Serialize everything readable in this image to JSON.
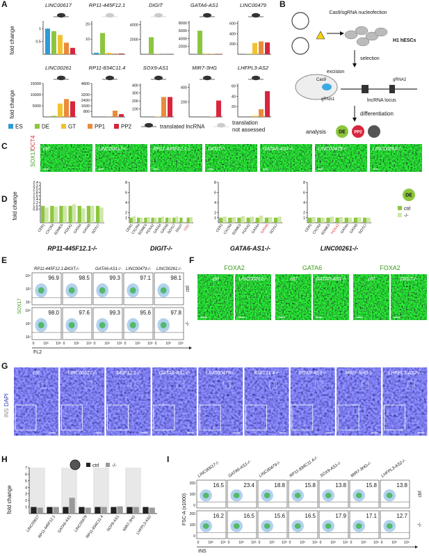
{
  "panel_letters": [
    "A",
    "B",
    "C",
    "D",
    "E",
    "F",
    "G",
    "H",
    "I"
  ],
  "a": {
    "y_label": "fold change",
    "stage_names": [
      "ES",
      "DE",
      "GT",
      "PP1",
      "PP2"
    ],
    "stage_colors": [
      "#2f9bd6",
      "#8cc63f",
      "#f2c12e",
      "#e98b3a",
      "#d7263d"
    ],
    "translated": "translated lncRNA",
    "not_assessed_1": "translation",
    "not_assessed_2": "not assessed",
    "charts": [
      {
        "title": "LINC00617",
        "translated": true,
        "ylim": [
          0,
          1.3
        ],
        "yticks": [
          0.5,
          1
        ],
        "values": [
          1.0,
          0.9,
          0.75,
          0.45,
          0.25
        ]
      },
      {
        "title": "RP11-445F12.1",
        "translated": false,
        "ylim": [
          0,
          22
        ],
        "yticks": [
          10,
          20
        ],
        "values": [
          1,
          14,
          1,
          0.5,
          0.5
        ]
      },
      {
        "title": "DIGIT",
        "translated": false,
        "ylim": [
          0,
          4500
        ],
        "yticks": [
          2000,
          4000
        ],
        "values": [
          0,
          2300,
          30,
          10,
          10
        ]
      },
      {
        "title": "GATA6-AS1",
        "translated": true,
        "ylim": [
          0,
          8500
        ],
        "yticks": [
          2000,
          4000,
          6000,
          8000
        ],
        "values": [
          0,
          6000,
          150,
          100,
          100
        ]
      },
      {
        "title": "LINC00479",
        "translated": true,
        "ylim": [
          0,
          650
        ],
        "yticks": [
          200,
          400,
          600
        ],
        "values": [
          0,
          10,
          220,
          250,
          230
        ]
      },
      {
        "title": "LINC00261",
        "translated": true,
        "ylim": [
          0,
          15000
        ],
        "yticks": [
          5000,
          10000,
          15000
        ],
        "values": [
          0,
          500,
          6000,
          8000,
          7000
        ]
      },
      {
        "title": "RP11-834C11.4",
        "translated": true,
        "ylim": [
          0,
          4800
        ],
        "yticks": [
          800,
          1600,
          2400,
          3200,
          4800
        ],
        "values": [
          0,
          0,
          20,
          900,
          400
        ]
      },
      {
        "title": "SOX9-AS1",
        "translated": true,
        "ylim": [
          0,
          420
        ],
        "yticks": [
          100,
          200,
          300,
          400
        ],
        "values": [
          0,
          0,
          5,
          250,
          250
        ]
      },
      {
        "title": "MIR7-3HG",
        "translated": true,
        "ylim": [
          0,
          450
        ],
        "yticks": [
          200,
          400
        ],
        "values": [
          0,
          0,
          0,
          5,
          220
        ]
      },
      {
        "title": "LHFPL3-AS2",
        "translated": true,
        "ylim": [
          0,
          65
        ],
        "yticks": [
          20,
          40,
          60
        ],
        "values": [
          0,
          0,
          2,
          15,
          50
        ]
      }
    ]
  },
  "b": {
    "nucleofection": "Cas9/sgRNA nucleofection",
    "cells": "H1 hESCs",
    "selection": "selection",
    "excision": "excision",
    "cas9": "Cas9",
    "grna2": "gRNA2",
    "grna1": "gRNA1",
    "locus": "lncRNA locus",
    "differentiation": "differentiation",
    "analysis": "analysis",
    "de": "DE",
    "pp2": "PP2"
  },
  "c": {
    "stain_1": "SOX17",
    "stain_2": "OCT4",
    "labels": [
      "ctrl",
      "LINC00617-/-",
      "RP11-445F12.1-/-",
      "DIGIT-/-",
      "GATA6-AS1-/-",
      "LINC00479-/-",
      "LINC00261-/-"
    ]
  },
  "d": {
    "y_label": "fold change",
    "series_names": [
      "ctrl",
      "-/-"
    ],
    "series_colors": [
      "#8cc63f",
      "#cfe6a8"
    ],
    "legend_badge": "DE",
    "charts": [
      {
        "title": "RP11-445F12.1-/-",
        "ylim": [
          0,
          2.4
        ],
        "yticks": [
          0.8,
          {
            "value": 1,
            "label": "1.0"
          },
          1.2,
          1.4,
          1.6,
          1.8,
          {
            "value": 2,
            "label": "2.0"
          },
          2.2,
          2.4
        ],
        "categories": [
          "CER1",
          "CXCR4",
          "EOMES",
          "FOXA2",
          "GATA4",
          "GATA6",
          "SOX17"
        ],
        "category_colors": [
          "#111",
          "#111",
          "#111",
          "#111",
          "#111",
          "#111",
          "#111"
        ],
        "series": [
          [
            1,
            1,
            1,
            1,
            1,
            1,
            1
          ],
          [
            0.9,
            0.95,
            1.0,
            1.1,
            0.85,
            1.0,
            0.9
          ]
        ]
      },
      {
        "title": "DIGIT-/-",
        "ylim": [
          0,
          8
        ],
        "yticks": [
          1,
          2,
          4,
          6,
          8
        ],
        "categories": [
          "CER1",
          "CXCR4",
          "EOMES",
          "FOXA2",
          "GATA4",
          "GATA6",
          "SOX17",
          "DIGIT",
          "GSC"
        ],
        "category_colors": [
          "#111",
          "#111",
          "#111",
          "#111",
          "#111",
          "#111",
          "#111",
          "#111",
          "#e0262b"
        ],
        "series": [
          [
            1,
            1,
            1,
            1,
            1,
            1,
            1,
            1,
            1
          ],
          [
            1.3,
            1.0,
            1.1,
            1.0,
            1.2,
            1.0,
            1.2,
            0.2,
            1.1
          ]
        ]
      },
      {
        "title": "GATA6-AS1-/-",
        "ylim": [
          0,
          8
        ],
        "yticks": [
          1,
          2,
          4,
          6,
          8
        ],
        "categories": [
          "CER1",
          "CXCR4",
          "EOMES",
          "FOXA2",
          "GATA4",
          "GATA6",
          "SOX17"
        ],
        "category_colors": [
          "#111",
          "#111",
          "#111",
          "#111",
          "#111",
          "#e0262b",
          "#111"
        ],
        "series": [
          [
            1,
            1,
            1,
            1,
            1,
            1,
            1
          ],
          [
            1.2,
            1.1,
            1.3,
            1.2,
            1.4,
            1.1,
            1.2
          ]
        ]
      },
      {
        "title": "LINC00261-/-",
        "ylim": [
          0,
          8
        ],
        "yticks": [
          1,
          2,
          4,
          6,
          8
        ],
        "categories": [
          "CER1",
          "CXCR4",
          "EOMES",
          "FOXA2",
          "GATA4",
          "GATA6",
          "SOX17"
        ],
        "category_colors": [
          "#111",
          "#111",
          "#111",
          "#e0262b",
          "#111",
          "#111",
          "#111"
        ],
        "series": [
          [
            1,
            1,
            1,
            1,
            1,
            1,
            1
          ],
          [
            1.1,
            1.0,
            1.2,
            1.1,
            1.0,
            1.1,
            1.0
          ]
        ]
      }
    ]
  },
  "e": {
    "col_labels": [
      "RP11-445F12.1-/-",
      "DIGIT-/-",
      "GATA6-AS1-/-",
      "LINC00479-/-",
      "LINC00261-/-"
    ],
    "row_labels": [
      "ctrl",
      "-/-"
    ],
    "values": [
      [
        "96.9",
        "98.5",
        "99.3",
        "97.1",
        "98.1"
      ],
      [
        "98.0",
        "97.6",
        "99.3",
        "95.6",
        "97.8"
      ]
    ],
    "y_label": "SOX17",
    "x_label": "FL2",
    "yticks": [
      "10⁵",
      "10³",
      "10¹"
    ],
    "xticks": [
      "0",
      "10³",
      "10⁵"
    ]
  },
  "f": {
    "groups": [
      {
        "stain": "FOXA2",
        "labels": [
          "ctrl",
          "LINC00261-/-"
        ]
      },
      {
        "stain": "GATA6",
        "labels": [
          "ctrl",
          "GATA6-AS1-/-"
        ]
      },
      {
        "stain": "FOXA2",
        "labels": [
          "ctrl",
          "DIGIT-/-"
        ]
      }
    ]
  },
  "g": {
    "stain_1": "INS",
    "stain_2": "DAPI",
    "labels": [
      "ctrl",
      "LINC00617-/-",
      "445F12.1-/-",
      "GATA6-AS1-/-",
      "LINC00479-/-",
      "834C11.4-/-",
      "SOX9-AS1-/-",
      "MIR7-3HG-/-",
      "LHFPL3-AS2-/-"
    ]
  },
  "h": {
    "y_label": "fold change",
    "categories": [
      "LINC00617",
      "RP11-445F12.1",
      "GATA6-AS1",
      "LINC00479",
      "RP11-834C11.4",
      "SOX9-AS1",
      "MIR7-3HG",
      "LHFPL3-AS2"
    ],
    "series": [
      {
        "name": "ctrl",
        "color": "#222222",
        "values": [
          1,
          1,
          1,
          1,
          1,
          1,
          1,
          1
        ]
      },
      {
        "name": "-/-",
        "color": "#9a9a9a",
        "values": [
          0.9,
          1.0,
          2.4,
          0.9,
          1.0,
          1.1,
          1.0,
          0.9
        ]
      }
    ],
    "ylim": [
      0,
      7
    ],
    "yticks": [
      1,
      2,
      3,
      4,
      5,
      6,
      7
    ]
  },
  "i": {
    "col_labels": [
      "LINC00617-/-",
      "GATA6-AS1-/-",
      "LINC00479-/-",
      "RP11-834C11.4-/-",
      "SOX9-AS1-/-",
      "MIR7-3HG-/-",
      "LHFPL3-AS2-/-"
    ],
    "row_labels": [
      "ctrl",
      "-/-"
    ],
    "values": [
      [
        "16.5",
        "23.4",
        "18.8",
        "15.8",
        "13.8",
        "15.8",
        "13.8"
      ],
      [
        "16.2",
        "16.5",
        "15.6",
        "16.5",
        "17.9",
        "17.1",
        "12.7"
      ]
    ],
    "y_label": "FSC-A (x1000)",
    "x_label": "INS",
    "yticks": [
      "200",
      "100",
      "0"
    ],
    "xticks": [
      "0",
      "10³",
      "10⁵"
    ]
  }
}
